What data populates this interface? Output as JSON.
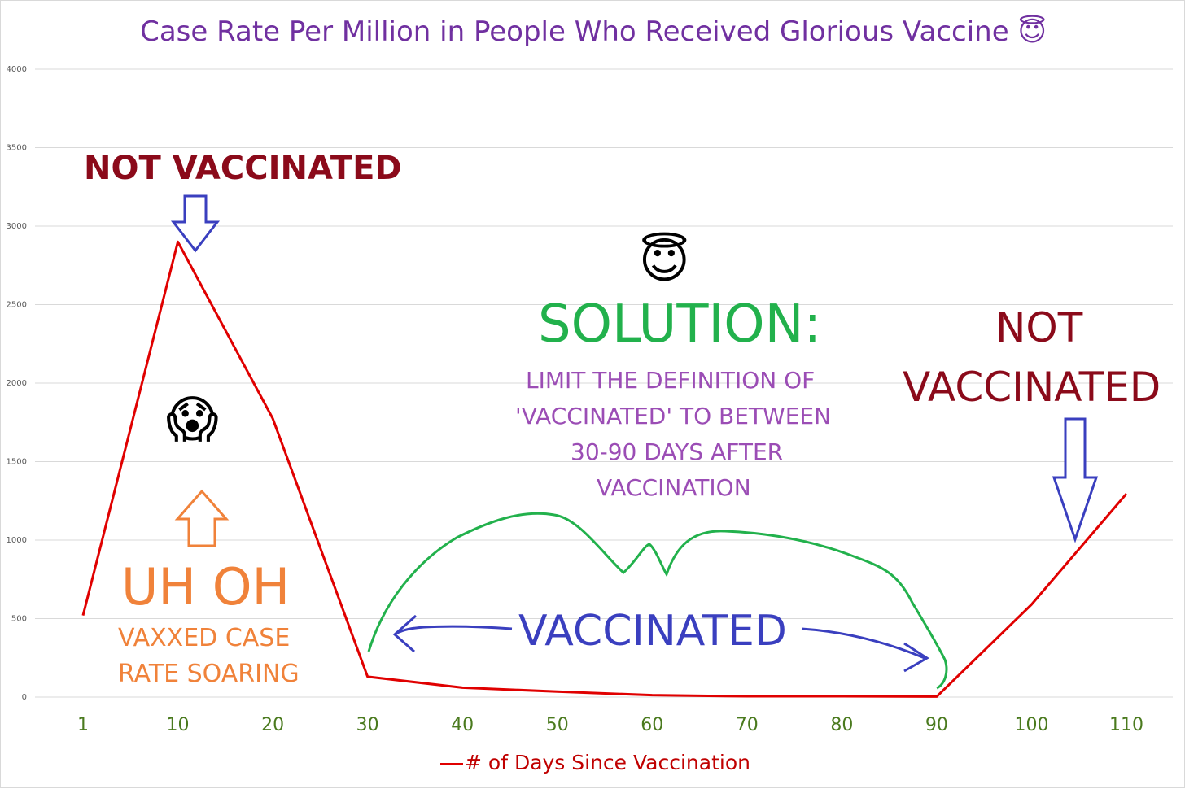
{
  "chart_data": {
    "type": "line",
    "title": "Case Rate Per Million in People Who Received Glorious Vaccine",
    "title_emoji": "😇",
    "categories": [
      "1",
      "10",
      "20",
      "30",
      "40",
      "50",
      "60",
      "70",
      "80",
      "90",
      "100",
      "110"
    ],
    "series": [
      {
        "name": "# of Days Since Vaccination",
        "color": "#e00000",
        "values": [
          520,
          2900,
          1775,
          130,
          60,
          35,
          12,
          5,
          5,
          3,
          590,
          1295
        ]
      }
    ],
    "ylim": [
      0,
      4000
    ],
    "yticks": [
      "0",
      "500",
      "1000",
      "1500",
      "2000",
      "2500",
      "3000",
      "3500",
      "4000"
    ],
    "grid": true,
    "legend_position": "bottom",
    "annotations": {
      "not_vaccinated_left": "NOT VACCINATED",
      "not_vaccinated_right_line1": "NOT",
      "not_vaccinated_right_line2": "VACCINATED",
      "halo_emoji": "😇",
      "solution": "SOLUTION:",
      "definition_line1": "LIMIT THE DEFINITION OF",
      "definition_line2": "'VACCINATED' TO BETWEEN",
      "definition_line3": "30-90 DAYS AFTER",
      "definition_line4": "VACCINATION",
      "scream_emoji": "😱",
      "uh_oh": "UH OH",
      "vaxxed_line1": "VAXXED CASE",
      "vaxxed_line2": "RATE SOARING",
      "vaccinated": "VACCINATED"
    },
    "colors": {
      "title": "#7030a0",
      "dark_red": "#8b0a1a",
      "green": "#22b14c",
      "purple": "#9b4db5",
      "orange": "#f0823a",
      "blue": "#3a3fbf",
      "line": "#e00000",
      "tick_x": "#4a7a1e",
      "grid": "#d9d9d9"
    }
  }
}
